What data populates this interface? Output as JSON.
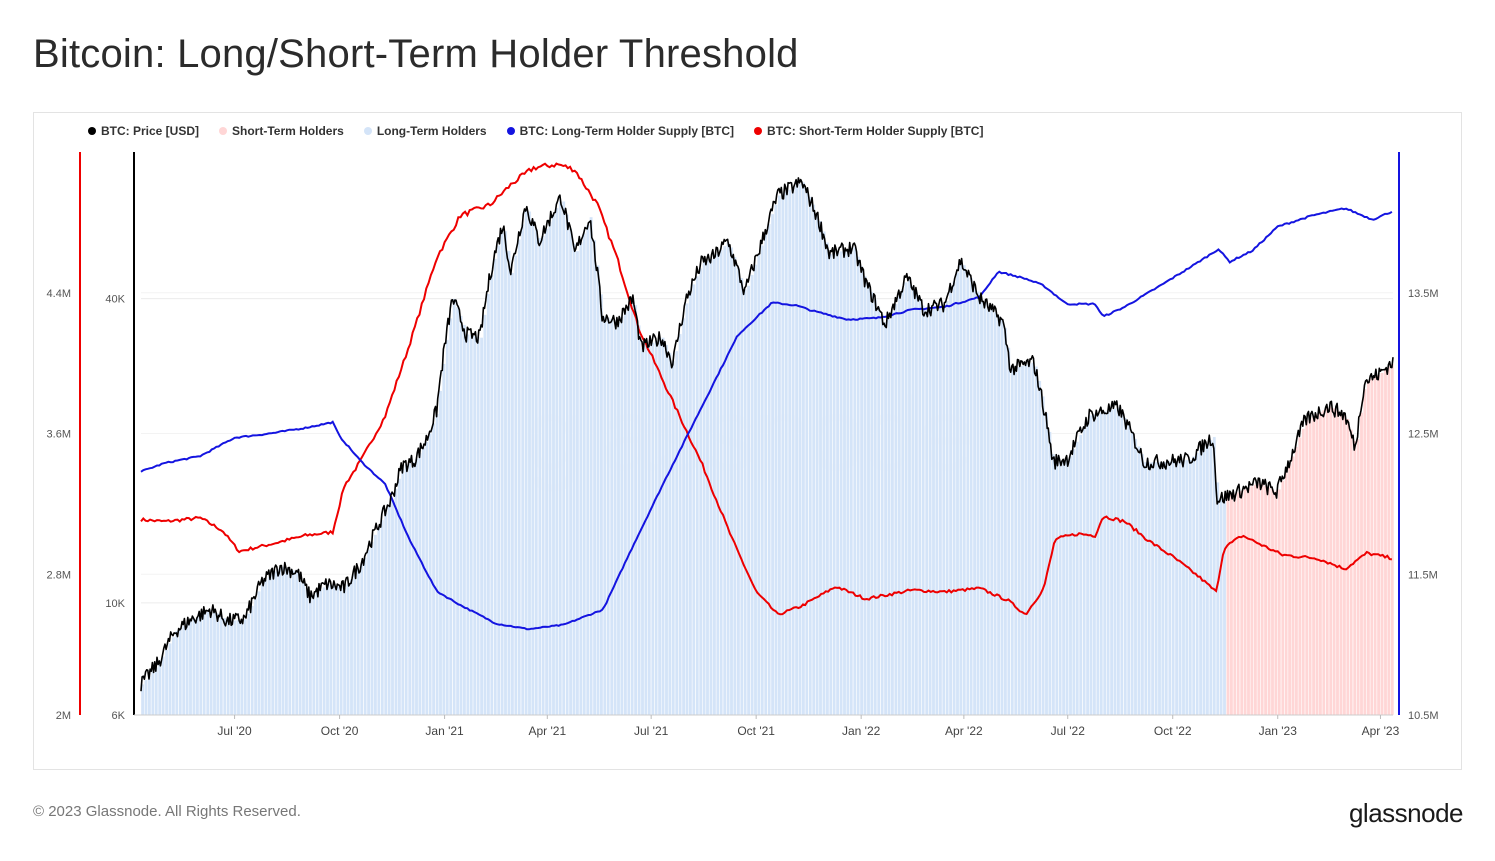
{
  "header": {
    "title": "Bitcoin: Long/Short-Term Holder Threshold"
  },
  "footer": {
    "copyright": "© 2023 Glassnode. All Rights Reserved.",
    "brand": "glassnode"
  },
  "watermark": "glassnode",
  "legend": [
    {
      "label": "BTC: Price [USD]",
      "color": "#000000"
    },
    {
      "label": "Short-Term Holders",
      "color": "#ffd6d6"
    },
    {
      "label": "Long-Term Holders",
      "color": "#d4e4f8"
    },
    {
      "label": "BTC: Long-Term Holder Supply [BTC]",
      "color": "#1414e0"
    },
    {
      "label": "BTC: Short-Term Holder Supply [BTC]",
      "color": "#ee0000"
    }
  ],
  "colors": {
    "price": "#000000",
    "lth_supply": "#1414e0",
    "sth_supply": "#ee0000",
    "lth_fill": "#d4e4f8",
    "sth_fill": "#ffd6d6",
    "grid": "#ececec"
  },
  "chart_data": {
    "type": "line",
    "x_ticks": [
      "Jul '20",
      "Oct '20",
      "Jan '21",
      "Apr '21",
      "Jul '21",
      "Oct '21",
      "Jan '22",
      "Apr '22",
      "Jul '22",
      "Oct '22",
      "Jan '23",
      "Apr '23"
    ],
    "x_tick_dates": [
      "2020-07-01",
      "2020-10-01",
      "2021-01-01",
      "2021-04-01",
      "2021-07-01",
      "2021-10-01",
      "2022-01-01",
      "2022-04-01",
      "2022-07-01",
      "2022-10-01",
      "2023-01-01",
      "2023-04-01"
    ],
    "x_range": [
      "2020-04-10",
      "2023-04-12"
    ],
    "axes": {
      "sth_supply": {
        "side": "left-outer",
        "ticks": [
          "2M",
          "2.8M",
          "3.6M",
          "4.4M"
        ],
        "tick_values": [
          2000000,
          2800000,
          3600000,
          4400000
        ],
        "range": [
          2000000,
          5200000
        ]
      },
      "price": {
        "side": "left-inner",
        "scale": "log",
        "ticks": [
          "6K",
          "10K",
          "40K"
        ],
        "tick_values": [
          6000,
          10000,
          40000
        ],
        "range": [
          6000,
          78000
        ]
      },
      "lth_supply": {
        "side": "right",
        "ticks": [
          "10.5M",
          "11.5M",
          "12.5M",
          "13.5M"
        ],
        "tick_values": [
          10500000,
          11500000,
          12500000,
          13500000
        ],
        "range": [
          10500000,
          14500000
        ]
      }
    },
    "series": [
      {
        "name": "BTC: Price [USD]",
        "axis": "price",
        "points": [
          [
            "2020-04-10",
            6900
          ],
          [
            "2020-04-25",
            7600
          ],
          [
            "2020-05-10",
            8800
          ],
          [
            "2020-05-25",
            9300
          ],
          [
            "2020-06-10",
            9700
          ],
          [
            "2020-06-25",
            9200
          ],
          [
            "2020-07-10",
            9300
          ],
          [
            "2020-07-25",
            11000
          ],
          [
            "2020-08-10",
            11800
          ],
          [
            "2020-08-25",
            11500
          ],
          [
            "2020-09-05",
            10300
          ],
          [
            "2020-09-20",
            10900
          ],
          [
            "2020-10-05",
            10700
          ],
          [
            "2020-10-20",
            12000
          ],
          [
            "2020-11-01",
            13800
          ],
          [
            "2020-11-15",
            16000
          ],
          [
            "2020-11-25",
            18700
          ],
          [
            "2020-12-05",
            19100
          ],
          [
            "2020-12-16",
            21000
          ],
          [
            "2020-12-25",
            24000
          ],
          [
            "2021-01-08",
            40000
          ],
          [
            "2021-01-20",
            34000
          ],
          [
            "2021-02-01",
            33500
          ],
          [
            "2021-02-12",
            47000
          ],
          [
            "2021-02-21",
            56000
          ],
          [
            "2021-02-28",
            45000
          ],
          [
            "2021-03-13",
            61000
          ],
          [
            "2021-03-25",
            52000
          ],
          [
            "2021-04-13",
            63500
          ],
          [
            "2021-04-25",
            49000
          ],
          [
            "2021-05-08",
            58000
          ],
          [
            "2021-05-19",
            37000
          ],
          [
            "2021-06-01",
            36000
          ],
          [
            "2021-06-15",
            40000
          ],
          [
            "2021-06-22",
            32000
          ],
          [
            "2021-07-10",
            33500
          ],
          [
            "2021-07-20",
            29800
          ],
          [
            "2021-08-01",
            40000
          ],
          [
            "2021-08-14",
            47000
          ],
          [
            "2021-08-25",
            48500
          ],
          [
            "2021-09-06",
            52000
          ],
          [
            "2021-09-21",
            41000
          ],
          [
            "2021-10-05",
            51000
          ],
          [
            "2021-10-20",
            64000
          ],
          [
            "2021-11-10",
            68000
          ],
          [
            "2021-11-25",
            57000
          ],
          [
            "2021-12-04",
            49000
          ],
          [
            "2021-12-25",
            50500
          ],
          [
            "2022-01-05",
            43000
          ],
          [
            "2022-01-22",
            35500
          ],
          [
            "2022-02-10",
            44000
          ],
          [
            "2022-02-25",
            38000
          ],
          [
            "2022-03-15",
            39000
          ],
          [
            "2022-03-29",
            47500
          ],
          [
            "2022-04-15",
            40000
          ],
          [
            "2022-05-05",
            36000
          ],
          [
            "2022-05-12",
            29000
          ],
          [
            "2022-06-01",
            30000
          ],
          [
            "2022-06-13",
            22500
          ],
          [
            "2022-06-18",
            19000
          ],
          [
            "2022-07-01",
            19300
          ],
          [
            "2022-07-20",
            23500
          ],
          [
            "2022-08-14",
            24400
          ],
          [
            "2022-09-06",
            19000
          ],
          [
            "2022-09-20",
            19000
          ],
          [
            "2022-10-15",
            19200
          ],
          [
            "2022-11-05",
            21300
          ],
          [
            "2022-11-09",
            16000
          ],
          [
            "2022-11-25",
            16500
          ],
          [
            "2022-12-15",
            17300
          ],
          [
            "2022-12-31",
            16550
          ],
          [
            "2023-01-13",
            19500
          ],
          [
            "2023-01-25",
            23000
          ],
          [
            "2023-02-15",
            24500
          ],
          [
            "2023-03-01",
            23500
          ],
          [
            "2023-03-10",
            20200
          ],
          [
            "2023-03-18",
            27400
          ],
          [
            "2023-03-31",
            28400
          ],
          [
            "2023-04-12",
            30000
          ]
        ]
      },
      {
        "name": "BTC: Long-Term Holder Supply [BTC]",
        "axis": "lth_supply",
        "points": [
          [
            "2020-04-10",
            12230000
          ],
          [
            "2020-05-01",
            12290000
          ],
          [
            "2020-06-01",
            12340000
          ],
          [
            "2020-07-01",
            12470000
          ],
          [
            "2020-08-01",
            12500000
          ],
          [
            "2020-09-01",
            12540000
          ],
          [
            "2020-09-25",
            12580000
          ],
          [
            "2020-10-01",
            12480000
          ],
          [
            "2020-10-20",
            12300000
          ],
          [
            "2020-11-10",
            12140000
          ],
          [
            "2020-12-01",
            11750000
          ],
          [
            "2020-12-25",
            11380000
          ],
          [
            "2021-01-15",
            11280000
          ],
          [
            "2021-02-15",
            11150000
          ],
          [
            "2021-03-15",
            11110000
          ],
          [
            "2021-04-15",
            11140000
          ],
          [
            "2021-05-20",
            11250000
          ],
          [
            "2021-06-15",
            11700000
          ],
          [
            "2021-07-15",
            12200000
          ],
          [
            "2021-08-15",
            12700000
          ],
          [
            "2021-09-15",
            13200000
          ],
          [
            "2021-10-15",
            13430000
          ],
          [
            "2021-11-05",
            13410000
          ],
          [
            "2021-11-20",
            13370000
          ],
          [
            "2021-12-20",
            13310000
          ],
          [
            "2022-01-15",
            13320000
          ],
          [
            "2022-02-15",
            13380000
          ],
          [
            "2022-03-15",
            13400000
          ],
          [
            "2022-04-15",
            13470000
          ],
          [
            "2022-05-01",
            13650000
          ],
          [
            "2022-05-25",
            13600000
          ],
          [
            "2022-06-10",
            13550000
          ],
          [
            "2022-06-30",
            13420000
          ],
          [
            "2022-07-25",
            13420000
          ],
          [
            "2022-08-01",
            13330000
          ],
          [
            "2022-08-20",
            13400000
          ],
          [
            "2022-09-20",
            13550000
          ],
          [
            "2022-10-20",
            13700000
          ],
          [
            "2022-11-10",
            13810000
          ],
          [
            "2022-11-20",
            13720000
          ],
          [
            "2022-12-10",
            13800000
          ],
          [
            "2023-01-01",
            13970000
          ],
          [
            "2023-02-01",
            14050000
          ],
          [
            "2023-03-01",
            14100000
          ],
          [
            "2023-03-25",
            14020000
          ],
          [
            "2023-04-12",
            14080000
          ]
        ]
      },
      {
        "name": "BTC: Short-Term Holder Supply [BTC]",
        "axis": "sth_supply",
        "points": [
          [
            "2020-04-10",
            3110000
          ],
          [
            "2020-05-01",
            3100000
          ],
          [
            "2020-06-01",
            3120000
          ],
          [
            "2020-06-20",
            3050000
          ],
          [
            "2020-07-05",
            2930000
          ],
          [
            "2020-08-01",
            2970000
          ],
          [
            "2020-09-01",
            3020000
          ],
          [
            "2020-09-25",
            3040000
          ],
          [
            "2020-10-05",
            3300000
          ],
          [
            "2020-10-20",
            3450000
          ],
          [
            "2020-11-10",
            3700000
          ],
          [
            "2020-12-01",
            4100000
          ],
          [
            "2020-12-25",
            4600000
          ],
          [
            "2021-01-15",
            4840000
          ],
          [
            "2021-02-10",
            4900000
          ],
          [
            "2021-03-01",
            5020000
          ],
          [
            "2021-03-20",
            5110000
          ],
          [
            "2021-04-10",
            5130000
          ],
          [
            "2021-04-25",
            5100000
          ],
          [
            "2021-05-15",
            4900000
          ],
          [
            "2021-06-01",
            4600000
          ],
          [
            "2021-06-20",
            4200000
          ],
          [
            "2021-07-15",
            3850000
          ],
          [
            "2021-08-15",
            3420000
          ],
          [
            "2021-09-10",
            3000000
          ],
          [
            "2021-10-01",
            2700000
          ],
          [
            "2021-10-20",
            2570000
          ],
          [
            "2021-11-10",
            2620000
          ],
          [
            "2021-12-10",
            2730000
          ],
          [
            "2022-01-05",
            2660000
          ],
          [
            "2022-02-15",
            2710000
          ],
          [
            "2022-03-15",
            2700000
          ],
          [
            "2022-04-15",
            2720000
          ],
          [
            "2022-05-10",
            2650000
          ],
          [
            "2022-05-25",
            2570000
          ],
          [
            "2022-06-10",
            2720000
          ],
          [
            "2022-06-20",
            3000000
          ],
          [
            "2022-07-10",
            3030000
          ],
          [
            "2022-07-25",
            3020000
          ],
          [
            "2022-08-01",
            3130000
          ],
          [
            "2022-08-20",
            3100000
          ],
          [
            "2022-09-10",
            2990000
          ],
          [
            "2022-10-01",
            2900000
          ],
          [
            "2022-10-25",
            2780000
          ],
          [
            "2022-11-08",
            2700000
          ],
          [
            "2022-11-15",
            2950000
          ],
          [
            "2022-12-01",
            3020000
          ],
          [
            "2022-12-20",
            2960000
          ],
          [
            "2023-01-05",
            2910000
          ],
          [
            "2023-02-05",
            2890000
          ],
          [
            "2023-03-01",
            2830000
          ],
          [
            "2023-03-20",
            2920000
          ],
          [
            "2023-04-12",
            2890000
          ]
        ]
      }
    ],
    "area_series": [
      {
        "name": "Long-Term Holders",
        "range": [
          "2020-04-10",
          "2022-11-17"
        ]
      },
      {
        "name": "Short-Term Holders",
        "range": [
          "2022-11-17",
          "2023-04-12"
        ]
      }
    ]
  }
}
